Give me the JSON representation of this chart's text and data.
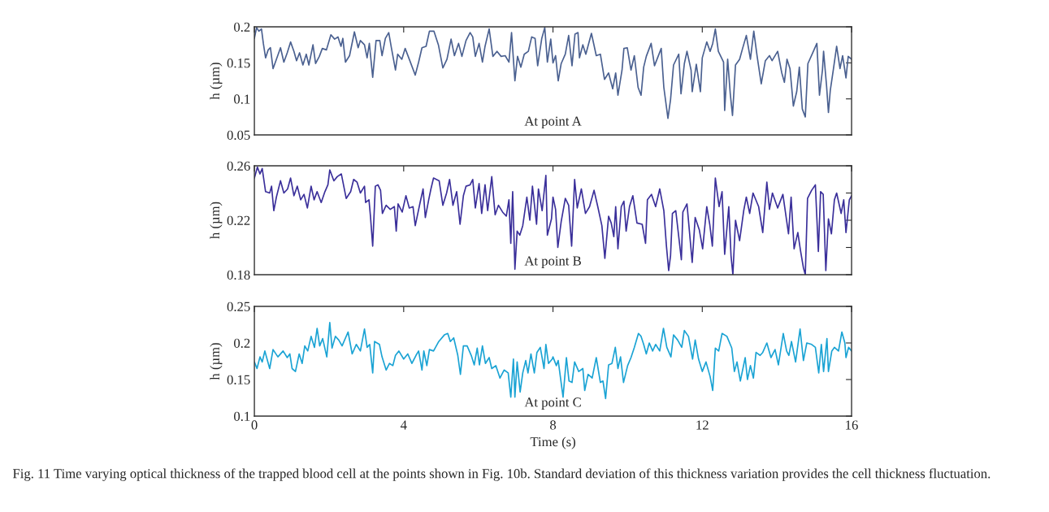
{
  "chart_data": [
    {
      "type": "line",
      "ylabel": "h (µm)",
      "xlim": [
        0,
        16
      ],
      "xticks": [
        {
          "value": 0,
          "label": null
        },
        {
          "value": 4,
          "label": null
        },
        {
          "value": 8,
          "label": null
        },
        {
          "value": 12,
          "label": null
        },
        {
          "value": 16,
          "label": null
        }
      ],
      "ylim": [
        0.05,
        0.2
      ],
      "yticks": [
        0.05,
        0.1,
        0.15,
        0.2
      ],
      "tick_labels": "y",
      "grid": false,
      "legend": false,
      "annotations": [
        "At point A"
      ],
      "series": [
        {
          "color": "#4a6090",
          "x": [
            0,
            0.06,
            0.12,
            0.19,
            0.24,
            0.3,
            0.37,
            0.43,
            0.5,
            0.59,
            0.7,
            0.79,
            0.88,
            0.97,
            1.06,
            1.13,
            1.21,
            1.3,
            1.39,
            1.46,
            1.57,
            1.64,
            1.74,
            1.82,
            1.93,
            2.05,
            2.15,
            2.24,
            2.32,
            2.37,
            2.44,
            2.55,
            2.68,
            2.78,
            2.84,
            2.95,
            3.02,
            3.08,
            3.17,
            3.26,
            3.36,
            3.42,
            3.51,
            3.6,
            3.67,
            3.78,
            3.84,
            3.95,
            4.04,
            4.15,
            4.31,
            4.4,
            4.49,
            4.6,
            4.69,
            4.81,
            4.93,
            5.05,
            5.16,
            5.27,
            5.36,
            5.47,
            5.56,
            5.67,
            5.78,
            5.85,
            5.92,
            6.02,
            6.11,
            6.18,
            6.29,
            6.39,
            6.5,
            6.61,
            6.72,
            6.82,
            6.89,
            6.98,
            7.05,
            7.14,
            7.23,
            7.34,
            7.43,
            7.52,
            7.59,
            7.7,
            7.78,
            7.85,
            7.94,
            8.0,
            8.07,
            8.14,
            8.22,
            8.33,
            8.42,
            8.51,
            8.59,
            8.67,
            8.71,
            8.8,
            8.88,
            9.03,
            9.16,
            9.27,
            9.38,
            9.49,
            9.6,
            9.68,
            9.74,
            9.85,
            9.9,
            9.99,
            10.09,
            10.18,
            10.28,
            10.36,
            10.43,
            10.5,
            10.63,
            10.72,
            10.9,
            10.97,
            11.08,
            11.15,
            11.23,
            11.37,
            11.43,
            11.52,
            11.59,
            11.7,
            11.73,
            11.84,
            11.95,
            12.0,
            12.12,
            12.21,
            12.28,
            12.35,
            12.43,
            12.57,
            12.6,
            12.68,
            12.75,
            12.81,
            12.89,
            13.0,
            13.08,
            13.18,
            13.29,
            13.38,
            13.47,
            13.58,
            13.69,
            13.8,
            13.87,
            14.02,
            14.13,
            14.2,
            14.27,
            14.35,
            14.44,
            14.53,
            14.6,
            14.68,
            14.76,
            14.83,
            14.96,
            15.07,
            15.14,
            15.22,
            15.25,
            15.33,
            15.38,
            15.43,
            15.51,
            15.6,
            15.69,
            15.76,
            15.85,
            15.91,
            16.0
          ],
          "values": [
            0.184,
            0.199,
            0.194,
            0.197,
            0.177,
            0.157,
            0.168,
            0.171,
            0.142,
            0.155,
            0.171,
            0.151,
            0.164,
            0.179,
            0.166,
            0.153,
            0.164,
            0.147,
            0.162,
            0.147,
            0.175,
            0.149,
            0.159,
            0.17,
            0.168,
            0.189,
            0.183,
            0.186,
            0.173,
            0.184,
            0.151,
            0.16,
            0.193,
            0.171,
            0.181,
            0.175,
            0.157,
            0.177,
            0.13,
            0.181,
            0.181,
            0.16,
            0.184,
            0.192,
            0.171,
            0.14,
            0.162,
            0.155,
            0.17,
            0.155,
            0.133,
            0.151,
            0.171,
            0.173,
            0.194,
            0.194,
            0.175,
            0.143,
            0.155,
            0.183,
            0.16,
            0.177,
            0.159,
            0.181,
            0.192,
            0.186,
            0.159,
            0.177,
            0.151,
            0.173,
            0.197,
            0.159,
            0.166,
            0.159,
            0.16,
            0.151,
            0.192,
            0.125,
            0.159,
            0.144,
            0.162,
            0.166,
            0.186,
            0.184,
            0.146,
            0.184,
            0.199,
            0.151,
            0.183,
            0.15,
            0.16,
            0.125,
            0.149,
            0.162,
            0.188,
            0.146,
            0.19,
            0.192,
            0.157,
            0.175,
            0.162,
            0.191,
            0.16,
            0.162,
            0.127,
            0.136,
            0.114,
            0.136,
            0.105,
            0.14,
            0.17,
            0.171,
            0.14,
            0.16,
            0.116,
            0.105,
            0.144,
            0.159,
            0.177,
            0.146,
            0.17,
            0.116,
            0.073,
            0.099,
            0.147,
            0.162,
            0.107,
            0.149,
            0.166,
            0.14,
            0.11,
            0.148,
            0.11,
            0.157,
            0.179,
            0.166,
            0.177,
            0.197,
            0.166,
            0.151,
            0.084,
            0.155,
            0.107,
            0.077,
            0.147,
            0.155,
            0.17,
            0.188,
            0.155,
            0.194,
            0.159,
            0.121,
            0.153,
            0.16,
            0.153,
            0.166,
            0.136,
            0.123,
            0.155,
            0.142,
            0.09,
            0.11,
            0.144,
            0.086,
            0.075,
            0.149,
            0.164,
            0.177,
            0.105,
            0.14,
            0.166,
            0.118,
            0.081,
            0.112,
            0.14,
            0.173,
            0.142,
            0.16,
            0.129,
            0.159,
            0.155
          ]
        }
      ]
    },
    {
      "type": "line",
      "ylabel": "h (µm)",
      "xlim": [
        0,
        16
      ],
      "xticks": [
        {
          "value": 0,
          "label": null
        },
        {
          "value": 4,
          "label": null
        },
        {
          "value": 8,
          "label": null
        },
        {
          "value": 12,
          "label": null
        },
        {
          "value": 16,
          "label": null
        }
      ],
      "ylim": [
        0.18,
        0.26
      ],
      "yticks": [
        0.18,
        {
          "value": 0.2,
          "label": null
        },
        0.22,
        {
          "value": 0.24,
          "label": null
        },
        0.26
      ],
      "tick_labels": "y",
      "grid": false,
      "legend": false,
      "annotations": [
        "At point B"
      ],
      "series": [
        {
          "color": "#3a2f9a",
          "x": [
            0,
            0.08,
            0.15,
            0.21,
            0.3,
            0.41,
            0.46,
            0.52,
            0.59,
            0.7,
            0.79,
            0.89,
            0.97,
            1.06,
            1.15,
            1.24,
            1.33,
            1.42,
            1.52,
            1.6,
            1.68,
            1.79,
            1.89,
            1.97,
            2.02,
            2.13,
            2.22,
            2.33,
            2.46,
            2.58,
            2.66,
            2.75,
            2.84,
            2.95,
            2.98,
            3.07,
            3.11,
            3.17,
            3.24,
            3.31,
            3.38,
            3.43,
            3.53,
            3.64,
            3.75,
            3.8,
            3.85,
            3.96,
            4.06,
            4.15,
            4.25,
            4.31,
            4.44,
            4.52,
            4.58,
            4.67,
            4.73,
            4.8,
            4.95,
            5.05,
            5.15,
            5.23,
            5.32,
            5.42,
            5.51,
            5.6,
            5.67,
            5.78,
            5.85,
            5.92,
            6.02,
            6.09,
            6.18,
            6.25,
            6.36,
            6.45,
            6.54,
            6.65,
            6.75,
            6.82,
            6.87,
            6.92,
            6.98,
            7.04,
            7.11,
            7.19,
            7.3,
            7.38,
            7.45,
            7.56,
            7.61,
            7.71,
            7.81,
            7.85,
            7.96,
            8.0,
            8.07,
            8.13,
            8.22,
            8.33,
            8.42,
            8.5,
            8.58,
            8.65,
            8.76,
            8.87,
            8.98,
            9.1,
            9.2,
            9.31,
            9.39,
            9.49,
            9.56,
            9.63,
            9.68,
            9.74,
            9.83,
            9.9,
            9.96,
            10.05,
            10.14,
            10.25,
            10.39,
            10.48,
            10.53,
            10.64,
            10.75,
            10.86,
            10.97,
            11.04,
            11.1,
            11.15,
            11.2,
            11.29,
            11.44,
            11.48,
            11.59,
            11.73,
            11.81,
            11.92,
            12.01,
            12.12,
            12.2,
            12.27,
            12.35,
            12.45,
            12.53,
            12.6,
            12.71,
            12.77,
            12.82,
            12.89,
            13.0,
            13.11,
            13.18,
            13.27,
            13.36,
            13.51,
            13.62,
            13.73,
            13.8,
            13.88,
            14.02,
            14.16,
            14.31,
            14.38,
            14.46,
            14.56,
            14.63,
            14.71,
            14.76,
            14.82,
            14.93,
            15.03,
            15.11,
            15.17,
            15.24,
            15.31,
            15.38,
            15.46,
            15.54,
            15.6,
            15.72,
            15.79,
            15.85,
            15.94,
            16.0
          ],
          "values": [
            0.251,
            0.259,
            0.254,
            0.258,
            0.241,
            0.24,
            0.245,
            0.227,
            0.237,
            0.249,
            0.24,
            0.243,
            0.251,
            0.238,
            0.245,
            0.235,
            0.239,
            0.229,
            0.245,
            0.235,
            0.241,
            0.233,
            0.241,
            0.246,
            0.257,
            0.249,
            0.252,
            0.254,
            0.236,
            0.241,
            0.25,
            0.248,
            0.24,
            0.245,
            0.233,
            0.235,
            0.223,
            0.201,
            0.245,
            0.246,
            0.242,
            0.225,
            0.231,
            0.228,
            0.23,
            0.212,
            0.232,
            0.226,
            0.238,
            0.229,
            0.23,
            0.216,
            0.233,
            0.243,
            0.222,
            0.235,
            0.243,
            0.251,
            0.249,
            0.231,
            0.24,
            0.25,
            0.231,
            0.241,
            0.217,
            0.238,
            0.245,
            0.246,
            0.25,
            0.229,
            0.247,
            0.225,
            0.246,
            0.227,
            0.252,
            0.224,
            0.231,
            0.226,
            0.223,
            0.235,
            0.203,
            0.241,
            0.184,
            0.212,
            0.209,
            0.216,
            0.237,
            0.22,
            0.245,
            0.217,
            0.243,
            0.227,
            0.253,
            0.209,
            0.221,
            0.237,
            0.228,
            0.2,
            0.219,
            0.236,
            0.231,
            0.201,
            0.25,
            0.229,
            0.243,
            0.225,
            0.23,
            0.242,
            0.23,
            0.216,
            0.192,
            0.223,
            0.218,
            0.208,
            0.23,
            0.199,
            0.23,
            0.234,
            0.212,
            0.23,
            0.238,
            0.218,
            0.217,
            0.203,
            0.235,
            0.239,
            0.23,
            0.243,
            0.227,
            0.201,
            0.183,
            0.194,
            0.225,
            0.227,
            0.191,
            0.226,
            0.232,
            0.189,
            0.222,
            0.213,
            0.199,
            0.23,
            0.217,
            0.201,
            0.251,
            0.23,
            0.241,
            0.195,
            0.23,
            0.194,
            0.18,
            0.22,
            0.205,
            0.227,
            0.237,
            0.225,
            0.24,
            0.23,
            0.211,
            0.248,
            0.228,
            0.24,
            0.229,
            0.239,
            0.21,
            0.237,
            0.199,
            0.211,
            0.198,
            0.185,
            0.18,
            0.236,
            0.242,
            0.246,
            0.197,
            0.241,
            0.239,
            0.183,
            0.221,
            0.21,
            0.235,
            0.24,
            0.225,
            0.235,
            0.211,
            0.235,
            0.238
          ]
        }
      ]
    },
    {
      "type": "line",
      "xlabel": "Time (s)",
      "ylabel": "h (µm)",
      "xlim": [
        0,
        16
      ],
      "xticks": [
        0,
        4,
        8,
        12,
        16
      ],
      "ylim": [
        0.1,
        0.25
      ],
      "yticks": [
        0.1,
        0.15,
        0.2,
        0.25
      ],
      "grid": false,
      "legend": false,
      "annotations": [
        "At point C",
        "Fig. 11 Time varying optical thickness of the trapped blood cell at the points shown in Fig. 10b. Standard deviation of this thickness variation provides the cell thickness fluctuation."
      ],
      "series": [
        {
          "color": "#1aa3d4",
          "x": [
            0,
            0.07,
            0.15,
            0.21,
            0.28,
            0.41,
            0.5,
            0.63,
            0.77,
            0.88,
            0.95,
            1.01,
            1.1,
            1.2,
            1.28,
            1.35,
            1.43,
            1.52,
            1.61,
            1.68,
            1.75,
            1.83,
            1.94,
            2.02,
            2.08,
            2.17,
            2.26,
            2.35,
            2.51,
            2.62,
            2.73,
            2.84,
            2.95,
            3.02,
            3.09,
            3.17,
            3.22,
            3.35,
            3.42,
            3.53,
            3.62,
            3.71,
            3.78,
            3.87,
            4.0,
            4.11,
            4.22,
            4.33,
            4.4,
            4.49,
            4.54,
            4.62,
            4.69,
            4.8,
            4.94,
            5.09,
            5.18,
            5.25,
            5.34,
            5.45,
            5.52,
            5.6,
            5.7,
            5.81,
            5.89,
            5.97,
            6.03,
            6.11,
            6.19,
            6.29,
            6.36,
            6.47,
            6.58,
            6.69,
            6.8,
            6.87,
            6.94,
            6.98,
            7.04,
            7.12,
            7.19,
            7.27,
            7.33,
            7.41,
            7.5,
            7.57,
            7.66,
            7.76,
            7.81,
            7.88,
            7.98,
            8.0,
            8.09,
            8.14,
            8.27,
            8.36,
            8.43,
            8.51,
            8.58,
            8.69,
            8.8,
            8.85,
            8.94,
            9.05,
            9.16,
            9.27,
            9.34,
            9.41,
            9.49,
            9.58,
            9.67,
            9.74,
            9.81,
            9.89,
            10.0,
            10.09,
            10.18,
            10.29,
            10.36,
            10.43,
            10.5,
            10.58,
            10.67,
            10.75,
            10.86,
            10.96,
            11.05,
            11.16,
            11.23,
            11.34,
            11.45,
            11.52,
            11.63,
            11.74,
            11.81,
            11.9,
            12.0,
            12.1,
            12.21,
            12.28,
            12.35,
            12.44,
            12.53,
            12.66,
            12.79,
            12.86,
            12.93,
            13.02,
            13.15,
            13.21,
            13.29,
            13.37,
            13.44,
            13.55,
            13.62,
            13.73,
            13.84,
            13.95,
            14.04,
            14.17,
            14.26,
            14.32,
            14.39,
            14.5,
            14.62,
            14.71,
            14.8,
            14.93,
            15.03,
            15.12,
            15.19,
            15.25,
            15.34,
            15.38,
            15.47,
            15.54,
            15.65,
            15.74,
            15.82,
            15.85,
            15.92,
            16.0
          ],
          "values": [
            0.174,
            0.165,
            0.181,
            0.174,
            0.189,
            0.165,
            0.191,
            0.181,
            0.189,
            0.18,
            0.185,
            0.165,
            0.161,
            0.185,
            0.172,
            0.196,
            0.189,
            0.209,
            0.194,
            0.22,
            0.196,
            0.206,
            0.181,
            0.228,
            0.193,
            0.209,
            0.204,
            0.196,
            0.215,
            0.185,
            0.198,
            0.189,
            0.219,
            0.194,
            0.198,
            0.159,
            0.202,
            0.198,
            0.181,
            0.163,
            0.172,
            0.169,
            0.183,
            0.189,
            0.178,
            0.185,
            0.172,
            0.183,
            0.189,
            0.163,
            0.189,
            0.169,
            0.191,
            0.189,
            0.202,
            0.211,
            0.213,
            0.202,
            0.207,
            0.183,
            0.157,
            0.196,
            0.196,
            0.183,
            0.17,
            0.193,
            0.17,
            0.196,
            0.172,
            0.18,
            0.165,
            0.169,
            0.152,
            0.163,
            0.159,
            0.126,
            0.178,
            0.126,
            0.174,
            0.133,
            0.159,
            0.176,
            0.159,
            0.185,
            0.159,
            0.187,
            0.194,
            0.165,
            0.198,
            0.172,
            0.178,
            0.181,
            0.169,
            0.176,
            0.126,
            0.18,
            0.148,
            0.146,
            0.174,
            0.161,
            0.165,
            0.135,
            0.157,
            0.152,
            0.18,
            0.146,
            0.148,
            0.124,
            0.17,
            0.172,
            0.194,
            0.165,
            0.181,
            0.146,
            0.169,
            0.18,
            0.194,
            0.213,
            0.209,
            0.198,
            0.185,
            0.2,
            0.189,
            0.198,
            0.189,
            0.22,
            0.194,
            0.181,
            0.211,
            0.204,
            0.194,
            0.217,
            0.209,
            0.178,
            0.204,
            0.178,
            0.161,
            0.174,
            0.154,
            0.135,
            0.193,
            0.189,
            0.213,
            0.209,
            0.193,
            0.161,
            0.174,
            0.148,
            0.18,
            0.15,
            0.169,
            0.152,
            0.187,
            0.183,
            0.187,
            0.2,
            0.18,
            0.191,
            0.17,
            0.213,
            0.189,
            0.183,
            0.202,
            0.174,
            0.219,
            0.176,
            0.2,
            0.198,
            0.194,
            0.159,
            0.198,
            0.161,
            0.206,
            0.161,
            0.189,
            0.194,
            0.189,
            0.215,
            0.2,
            0.18,
            0.194,
            0.189
          ]
        }
      ]
    }
  ]
}
